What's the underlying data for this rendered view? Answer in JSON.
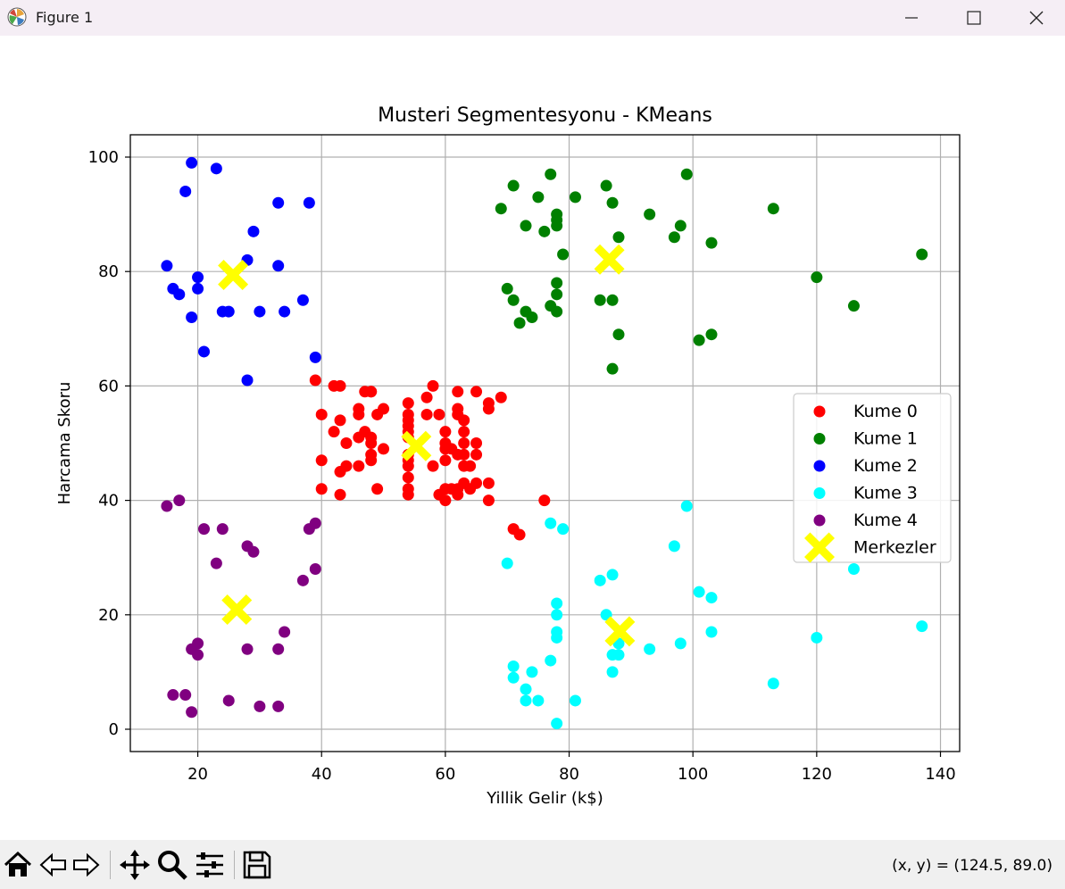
{
  "window": {
    "title": "Figure 1",
    "buttons": [
      "minimize",
      "maximize",
      "close"
    ]
  },
  "toolbar": {
    "tools": [
      "home-icon",
      "back-icon",
      "forward-icon",
      "pan-icon",
      "zoom-icon",
      "configure-subplots-icon",
      "save-icon"
    ],
    "coord_readout": "(x, y) = (124.5, 89.0)"
  },
  "chart_data": {
    "type": "scatter",
    "title": "Musteri Segmentesyonu - KMeans",
    "xlabel": "Yillik Gelir (k$)",
    "ylabel": "Harcama Skoru",
    "xlim": [
      9.1,
      143.1
    ],
    "ylim": [
      -3.9,
      103.9
    ],
    "xticks": [
      "20",
      "40",
      "60",
      "80",
      "100",
      "120",
      "140"
    ],
    "xtick_values": [
      20,
      40,
      60,
      80,
      100,
      120,
      140
    ],
    "yticks": [
      "0",
      "20",
      "40",
      "60",
      "80",
      "100"
    ],
    "ytick_values": [
      0,
      20,
      40,
      60,
      80,
      100
    ],
    "grid": true,
    "legend_position": "center-right",
    "series": [
      {
        "name": "Kume 0",
        "color": "#ff0000",
        "points": [
          [
            39,
            61
          ],
          [
            40,
            55
          ],
          [
            40,
            47
          ],
          [
            40,
            42
          ],
          [
            42,
            52
          ],
          [
            42,
            60
          ],
          [
            43,
            60
          ],
          [
            43,
            54
          ],
          [
            43,
            45
          ],
          [
            43,
            41
          ],
          [
            44,
            50
          ],
          [
            44,
            46
          ],
          [
            46,
            51
          ],
          [
            46,
            46
          ],
          [
            46,
            56
          ],
          [
            46,
            55
          ],
          [
            47,
            52
          ],
          [
            47,
            59
          ],
          [
            48,
            51
          ],
          [
            48,
            59
          ],
          [
            48,
            50
          ],
          [
            48,
            48
          ],
          [
            48,
            59
          ],
          [
            48,
            47
          ],
          [
            49,
            55
          ],
          [
            49,
            42
          ],
          [
            50,
            49
          ],
          [
            50,
            56
          ],
          [
            54,
            47
          ],
          [
            54,
            54
          ],
          [
            54,
            53
          ],
          [
            54,
            48
          ],
          [
            54,
            52
          ],
          [
            54,
            42
          ],
          [
            54,
            51
          ],
          [
            54,
            55
          ],
          [
            54,
            41
          ],
          [
            54,
            44
          ],
          [
            54,
            57
          ],
          [
            54,
            46
          ],
          [
            57,
            58
          ],
          [
            57,
            55
          ],
          [
            58,
            60
          ],
          [
            58,
            46
          ],
          [
            59,
            55
          ],
          [
            59,
            41
          ],
          [
            60,
            49
          ],
          [
            60,
            40
          ],
          [
            60,
            42
          ],
          [
            60,
            52
          ],
          [
            60,
            47
          ],
          [
            60,
            50
          ],
          [
            61,
            42
          ],
          [
            61,
            49
          ],
          [
            62,
            41
          ],
          [
            62,
            48
          ],
          [
            62,
            59
          ],
          [
            62,
            55
          ],
          [
            62,
            56
          ],
          [
            62,
            42
          ],
          [
            63,
            50
          ],
          [
            63,
            46
          ],
          [
            63,
            43
          ],
          [
            63,
            48
          ],
          [
            63,
            52
          ],
          [
            63,
            54
          ],
          [
            64,
            42
          ],
          [
            64,
            46
          ],
          [
            65,
            48
          ],
          [
            65,
            50
          ],
          [
            65,
            43
          ],
          [
            65,
            59
          ],
          [
            67,
            43
          ],
          [
            67,
            57
          ],
          [
            67,
            56
          ],
          [
            67,
            40
          ],
          [
            69,
            58
          ],
          [
            71,
            35
          ],
          [
            72,
            34
          ],
          [
            76,
            40
          ]
        ]
      },
      {
        "name": "Kume 1",
        "color": "#008000",
        "points": [
          [
            69,
            91
          ],
          [
            70,
            77
          ],
          [
            71,
            95
          ],
          [
            71,
            75
          ],
          [
            72,
            71
          ],
          [
            73,
            88
          ],
          [
            73,
            73
          ],
          [
            74,
            72
          ],
          [
            75,
            93
          ],
          [
            76,
            87
          ],
          [
            77,
            97
          ],
          [
            77,
            74
          ],
          [
            78,
            90
          ],
          [
            78,
            88
          ],
          [
            78,
            76
          ],
          [
            78,
            89
          ],
          [
            78,
            78
          ],
          [
            78,
            73
          ],
          [
            79,
            83
          ],
          [
            81,
            93
          ],
          [
            85,
            75
          ],
          [
            86,
            95
          ],
          [
            87,
            63
          ],
          [
            87,
            75
          ],
          [
            87,
            92
          ],
          [
            88,
            86
          ],
          [
            88,
            69
          ],
          [
            93,
            90
          ],
          [
            97,
            86
          ],
          [
            98,
            88
          ],
          [
            99,
            97
          ],
          [
            101,
            68
          ],
          [
            103,
            85
          ],
          [
            103,
            69
          ],
          [
            113,
            91
          ],
          [
            120,
            79
          ],
          [
            126,
            74
          ],
          [
            137,
            83
          ]
        ]
      },
      {
        "name": "Kume 2",
        "color": "#0000ff",
        "points": [
          [
            15,
            81
          ],
          [
            16,
            77
          ],
          [
            17,
            76
          ],
          [
            18,
            94
          ],
          [
            19,
            72
          ],
          [
            19,
            99
          ],
          [
            20,
            77
          ],
          [
            20,
            79
          ],
          [
            21,
            66
          ],
          [
            23,
            98
          ],
          [
            24,
            73
          ],
          [
            25,
            73
          ],
          [
            28,
            82
          ],
          [
            28,
            61
          ],
          [
            29,
            87
          ],
          [
            30,
            73
          ],
          [
            33,
            92
          ],
          [
            33,
            81
          ],
          [
            34,
            73
          ],
          [
            37,
            75
          ],
          [
            38,
            92
          ],
          [
            39,
            65
          ]
        ]
      },
      {
        "name": "Kume 3",
        "color": "#00ffff",
        "points": [
          [
            70,
            29
          ],
          [
            71,
            11
          ],
          [
            71,
            9
          ],
          [
            73,
            5
          ],
          [
            73,
            7
          ],
          [
            74,
            10
          ],
          [
            75,
            5
          ],
          [
            77,
            12
          ],
          [
            77,
            36
          ],
          [
            78,
            22
          ],
          [
            78,
            17
          ],
          [
            78,
            20
          ],
          [
            78,
            16
          ],
          [
            78,
            1
          ],
          [
            79,
            35
          ],
          [
            81,
            5
          ],
          [
            85,
            26
          ],
          [
            86,
            20
          ],
          [
            87,
            27
          ],
          [
            87,
            13
          ],
          [
            87,
            10
          ],
          [
            88,
            13
          ],
          [
            88,
            15
          ],
          [
            93,
            14
          ],
          [
            97,
            32
          ],
          [
            98,
            15
          ],
          [
            99,
            39
          ],
          [
            101,
            24
          ],
          [
            103,
            17
          ],
          [
            103,
            23
          ],
          [
            113,
            8
          ],
          [
            120,
            16
          ],
          [
            126,
            28
          ],
          [
            137,
            18
          ]
        ]
      },
      {
        "name": "Kume 4",
        "color": "#800080",
        "points": [
          [
            15,
            39
          ],
          [
            16,
            6
          ],
          [
            17,
            40
          ],
          [
            18,
            6
          ],
          [
            19,
            3
          ],
          [
            19,
            14
          ],
          [
            20,
            15
          ],
          [
            20,
            13
          ],
          [
            21,
            35
          ],
          [
            23,
            29
          ],
          [
            24,
            35
          ],
          [
            25,
            5
          ],
          [
            28,
            14
          ],
          [
            28,
            32
          ],
          [
            29,
            31
          ],
          [
            30,
            4
          ],
          [
            33,
            4
          ],
          [
            33,
            14
          ],
          [
            34,
            17
          ],
          [
            37,
            26
          ],
          [
            38,
            35
          ],
          [
            39,
            36
          ],
          [
            39,
            28
          ]
        ]
      },
      {
        "name": "Merkezler",
        "color": "#ffff00",
        "marker": "X",
        "points": [
          [
            55.3,
            49.5
          ],
          [
            86.5,
            82.1
          ],
          [
            25.7,
            79.4
          ],
          [
            88.2,
            17.1
          ],
          [
            26.3,
            20.9
          ]
        ]
      }
    ]
  }
}
